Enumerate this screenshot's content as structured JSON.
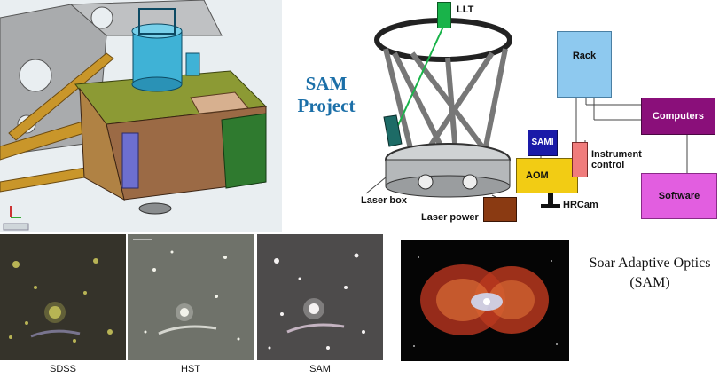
{
  "project_title_line1": "SAM",
  "project_title_line2": "Project",
  "diagram": {
    "llt": "LLT",
    "rack": "Rack",
    "computers": "Computers",
    "software": "Software",
    "sami": "SAMI",
    "aom": "AOM",
    "instrument_control_line1": "Instrument",
    "instrument_control_line2": "control",
    "hrcam": "HRCam",
    "laser_box": "Laser box",
    "laser_power": "Laser power"
  },
  "captions": {
    "sdss": "SDSS",
    "hst": "HST",
    "sam": "SAM"
  },
  "description_line1": "Soar Adaptive Optics",
  "description_line2": "(SAM)",
  "colors": {
    "title_blue": "#1b6fa8",
    "rack": "#8ec9ef",
    "computers": "#8a0f7a",
    "software": "#e25ee0",
    "sami": "#1a1aa8",
    "aom": "#f2cc14",
    "instrument_control": "#f07c7c",
    "laser_power": "#8a3a12",
    "llt": "#19b34a"
  }
}
